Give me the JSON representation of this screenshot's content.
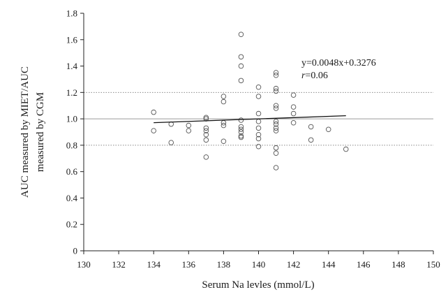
{
  "chart_data": {
    "type": "scatter",
    "title": "",
    "xlabel": "Serum Na levles (mmol/L)",
    "ylabel_lines": [
      "AUC measured by MIET/AUC",
      "measured by CGM"
    ],
    "xlim": [
      130,
      150
    ],
    "ylim": [
      0,
      1.8
    ],
    "xticks": [
      130,
      132,
      134,
      136,
      138,
      140,
      142,
      144,
      146,
      148,
      150
    ],
    "yticks": [
      0,
      0.2,
      0.4,
      0.6,
      0.8,
      1.0,
      1.2,
      1.4,
      1.6,
      1.8
    ],
    "ytick_labels": [
      "0",
      "0.2",
      "0.4",
      "0.6",
      "0.8",
      "1.0",
      "1.2",
      "1.4",
      "1.6",
      "1.8"
    ],
    "grid": false,
    "reference_lines": [
      {
        "y": 1.0,
        "style": "solid",
        "color": "#9a9a9a"
      },
      {
        "y": 1.2,
        "style": "dotted",
        "color": "#8a8a8a"
      },
      {
        "y": 0.8,
        "style": "dotted",
        "color": "#8a8a8a"
      }
    ],
    "regression": {
      "slope": 0.0048,
      "intercept": 0.3276,
      "x_range": [
        134,
        145
      ]
    },
    "annotation": {
      "equation": "y=0.0048x+0.3276",
      "r_symbol": "r",
      "r_text": "=0.06"
    },
    "points": [
      {
        "x": 134,
        "y": 1.05
      },
      {
        "x": 134,
        "y": 0.91
      },
      {
        "x": 135,
        "y": 0.96
      },
      {
        "x": 135,
        "y": 0.82
      },
      {
        "x": 136,
        "y": 0.95
      },
      {
        "x": 136,
        "y": 0.91
      },
      {
        "x": 137,
        "y": 1.01
      },
      {
        "x": 137,
        "y": 1.0
      },
      {
        "x": 137,
        "y": 0.93
      },
      {
        "x": 137,
        "y": 0.91
      },
      {
        "x": 137,
        "y": 0.88
      },
      {
        "x": 137,
        "y": 0.84
      },
      {
        "x": 137,
        "y": 0.71
      },
      {
        "x": 138,
        "y": 1.17
      },
      {
        "x": 138,
        "y": 1.13
      },
      {
        "x": 138,
        "y": 0.97
      },
      {
        "x": 138,
        "y": 0.95
      },
      {
        "x": 138,
        "y": 0.83
      },
      {
        "x": 139,
        "y": 1.64
      },
      {
        "x": 139,
        "y": 1.47
      },
      {
        "x": 139,
        "y": 1.4
      },
      {
        "x": 139,
        "y": 1.29
      },
      {
        "x": 139,
        "y": 0.99
      },
      {
        "x": 139,
        "y": 0.94
      },
      {
        "x": 139,
        "y": 0.92
      },
      {
        "x": 139,
        "y": 0.9
      },
      {
        "x": 139,
        "y": 0.87
      },
      {
        "x": 139,
        "y": 0.86
      },
      {
        "x": 140,
        "y": 1.24
      },
      {
        "x": 140,
        "y": 1.17
      },
      {
        "x": 140,
        "y": 1.04
      },
      {
        "x": 140,
        "y": 0.98
      },
      {
        "x": 140,
        "y": 0.93
      },
      {
        "x": 140,
        "y": 0.88
      },
      {
        "x": 140,
        "y": 0.85
      },
      {
        "x": 140,
        "y": 0.79
      },
      {
        "x": 141,
        "y": 1.35
      },
      {
        "x": 141,
        "y": 1.33
      },
      {
        "x": 141,
        "y": 1.23
      },
      {
        "x": 141,
        "y": 1.21
      },
      {
        "x": 141,
        "y": 1.1
      },
      {
        "x": 141,
        "y": 1.08
      },
      {
        "x": 141,
        "y": 0.98
      },
      {
        "x": 141,
        "y": 0.96
      },
      {
        "x": 141,
        "y": 0.93
      },
      {
        "x": 141,
        "y": 0.91
      },
      {
        "x": 141,
        "y": 0.78
      },
      {
        "x": 141,
        "y": 0.74
      },
      {
        "x": 141,
        "y": 0.63
      },
      {
        "x": 142,
        "y": 1.18
      },
      {
        "x": 142,
        "y": 1.09
      },
      {
        "x": 142,
        "y": 1.04
      },
      {
        "x": 142,
        "y": 0.97
      },
      {
        "x": 143,
        "y": 0.94
      },
      {
        "x": 143,
        "y": 0.84
      },
      {
        "x": 144,
        "y": 0.92
      },
      {
        "x": 145,
        "y": 0.77
      }
    ]
  }
}
